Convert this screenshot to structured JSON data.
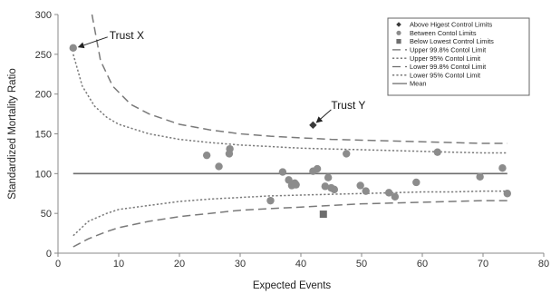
{
  "chart_data": {
    "type": "scatter",
    "xlabel": "Expected Events",
    "ylabel": "Standardized Mortality Ratio",
    "xlim": [
      0,
      80
    ],
    "ylim": [
      0,
      300
    ],
    "xticks": [
      "0",
      "10",
      "20",
      "30",
      "40",
      "50",
      "60",
      "70",
      "80"
    ],
    "yticks": [
      "0",
      "50",
      "100",
      "150",
      "200",
      "250",
      "300"
    ],
    "grid": false,
    "legend_position": "top-right",
    "mean": 100,
    "series": [
      {
        "name": "Above Higest Control Limits",
        "marker": "diamond",
        "color": "#3a3a3a",
        "points": [
          [
            42,
            161
          ]
        ]
      },
      {
        "name": "Between Contol Limits",
        "marker": "circle",
        "color": "#8c8c8c",
        "points": [
          [
            2.5,
            258
          ],
          [
            24.5,
            123
          ],
          [
            26.5,
            109
          ],
          [
            28.2,
            125
          ],
          [
            28.3,
            131
          ],
          [
            35,
            66
          ],
          [
            37,
            102
          ],
          [
            38,
            92
          ],
          [
            38.5,
            85
          ],
          [
            39,
            88
          ],
          [
            39.2,
            86
          ],
          [
            42,
            103
          ],
          [
            42.7,
            106
          ],
          [
            44,
            84
          ],
          [
            44.5,
            95
          ],
          [
            45,
            82
          ],
          [
            45.5,
            80
          ],
          [
            47.5,
            125
          ],
          [
            49.8,
            85
          ],
          [
            50.7,
            78
          ],
          [
            54.5,
            76
          ],
          [
            55.5,
            71
          ],
          [
            59,
            89
          ],
          [
            62.5,
            127
          ],
          [
            69.5,
            96
          ],
          [
            73.2,
            107
          ],
          [
            74,
            75
          ]
        ]
      },
      {
        "name": "Below Lowest Control Limits",
        "marker": "square",
        "color": "#6e6e6e",
        "points": [
          [
            43.7,
            49
          ]
        ]
      }
    ],
    "limits": [
      {
        "name": "Upper 99.8% Contol Limit",
        "style": "long-dash",
        "x": [
          5.6,
          7,
          9,
          12,
          15,
          20,
          25,
          30,
          35,
          40,
          45,
          50,
          55,
          60,
          65,
          70,
          74
        ],
        "y": [
          300,
          242,
          210,
          187,
          175,
          162,
          155,
          150,
          147,
          145,
          143,
          142,
          141,
          140,
          139,
          138,
          138
        ]
      },
      {
        "name": "Upper 95% Contol Limit",
        "style": "dotted",
        "x": [
          2.5,
          4,
          6,
          8,
          10,
          15,
          20,
          25,
          30,
          35,
          40,
          45,
          50,
          55,
          60,
          65,
          70,
          74
        ],
        "y": [
          250,
          210,
          185,
          171,
          162,
          150,
          143,
          139,
          136,
          134,
          132,
          131,
          130,
          129,
          128,
          127,
          126,
          126
        ]
      },
      {
        "name": "Lower 99.8% Contol Limit",
        "style": "long-dash",
        "x": [
          2.5,
          5,
          8,
          10,
          15,
          20,
          25,
          30,
          35,
          40,
          45,
          50,
          55,
          60,
          65,
          70,
          74
        ],
        "y": [
          8,
          18,
          27,
          32,
          40,
          46,
          50,
          54,
          56,
          58,
          60,
          62,
          63,
          64,
          65,
          66,
          66
        ]
      },
      {
        "name": "Lower 95% Contol Limit",
        "style": "dotted",
        "x": [
          2.5,
          5,
          8,
          10,
          15,
          20,
          25,
          30,
          35,
          40,
          45,
          50,
          55,
          60,
          65,
          70,
          74
        ],
        "y": [
          22,
          40,
          50,
          55,
          60,
          65,
          68,
          70,
          72,
          73,
          74,
          75,
          76,
          77,
          77,
          78,
          78
        ]
      }
    ],
    "mean_label": "Mean",
    "annotations": [
      {
        "text": "Trust X",
        "x": 2.5,
        "y": 258
      },
      {
        "text": "Trust Y",
        "x": 42,
        "y": 161
      }
    ]
  }
}
